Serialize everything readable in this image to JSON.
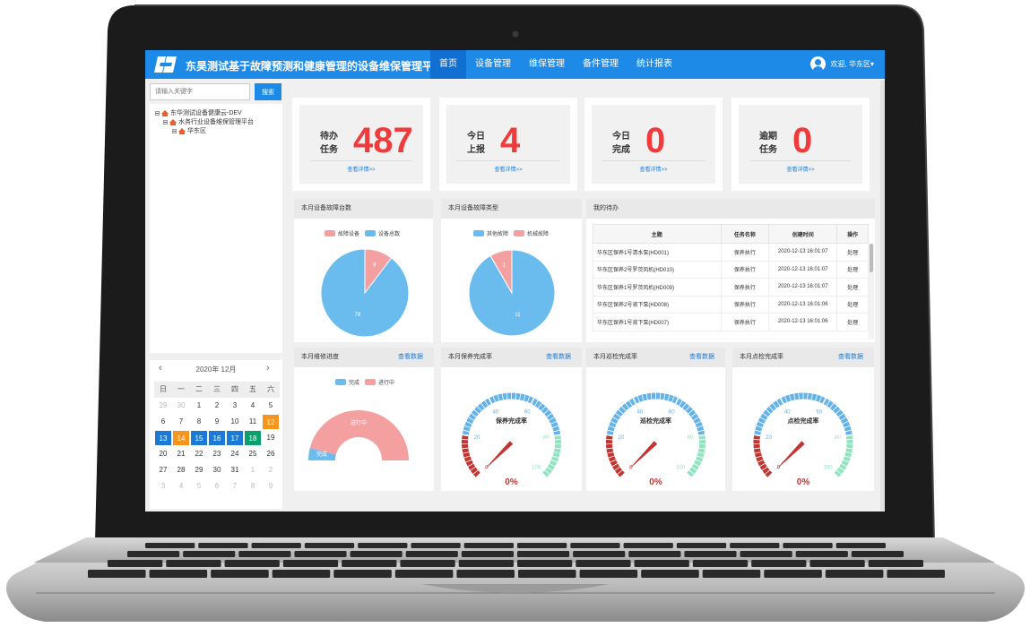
{
  "app": {
    "title": "东昊测试基于故障预测和健康管理的设备维保管理平台"
  },
  "nav": {
    "items": [
      "首页",
      "设备管理",
      "维保管理",
      "备件管理",
      "统计报表"
    ],
    "active": 0
  },
  "user": {
    "greeting": "欢迎, 华东区",
    "caret": "▾"
  },
  "search": {
    "placeholder": "请输入关键字",
    "button": "搜索"
  },
  "tree": {
    "nodes": [
      "东华测试设备健康云-DEV",
      "水务行业设备维保管理平台",
      "华东区"
    ]
  },
  "calendar": {
    "prev": "‹",
    "next": "›",
    "title": "2020年 12月",
    "weekdays": [
      "日",
      "一",
      "二",
      "三",
      "四",
      "五",
      "六"
    ],
    "weeks": [
      [
        "29",
        "30",
        "1",
        "2",
        "3",
        "4",
        "5"
      ],
      [
        "6",
        "7",
        "8",
        "9",
        "10",
        "11",
        "12"
      ],
      [
        "13",
        "14",
        "15",
        "16",
        "17",
        "18",
        "19"
      ],
      [
        "20",
        "21",
        "22",
        "23",
        "24",
        "25",
        "26"
      ],
      [
        "27",
        "28",
        "29",
        "30",
        "31",
        "1",
        "2"
      ],
      [
        "3",
        "4",
        "5",
        "6",
        "7",
        "8",
        "9"
      ]
    ]
  },
  "stats": [
    {
      "label": "待办任务",
      "value": "487",
      "link": "查看详情>>"
    },
    {
      "label": "今日上报",
      "value": "4",
      "link": "查看详情>>"
    },
    {
      "label": "今日完成",
      "value": "0",
      "link": "查看详情>>"
    },
    {
      "label": "逾期任务",
      "value": "0",
      "link": "查看详情>>"
    }
  ],
  "panels": {
    "fault_count": {
      "title": "本月设备故障台数"
    },
    "fault_type": {
      "title": "本月设备故障类型"
    },
    "todo": {
      "title": "我的待办",
      "columns": [
        "主题",
        "任务名称",
        "创建时间",
        "操作"
      ],
      "rows": [
        [
          "华东区保养1号清水泵(HD001)",
          "保养执行",
          "2020-12-13 16:01:07",
          "处理"
        ],
        [
          "华东区保养2号罗茨风机(HD010)",
          "保养执行",
          "2020-12-13 16:01:07",
          "处理"
        ],
        [
          "华东区保养1号罗茨风机(HD009)",
          "保养执行",
          "2020-12-13 16:01:07",
          "处理"
        ],
        [
          "华东区保养2号液下泵(HD008)",
          "保养执行",
          "2020-12-13 16:01:06",
          "处理"
        ],
        [
          "华东区保养1号液下泵(HD007)",
          "保养执行",
          "2020-12-13 16:01:06",
          "处理"
        ]
      ]
    },
    "repair_progress": {
      "title": "本月维修进度",
      "more": "查看数据",
      "inner_label": "进行中",
      "done_label": "完成"
    },
    "maintain_rate": {
      "title": "本月保养完成率",
      "more": "查看数据",
      "gauge_title": "保养完成率",
      "value": "0%"
    },
    "inspect_rate": {
      "title": "本月巡检完成率",
      "more": "查看数据",
      "gauge_title": "巡检完成率",
      "value": "0%"
    },
    "spot_rate": {
      "title": "本月点检完成率",
      "more": "查看数据",
      "gauge_title": "点检完成率",
      "value": "0%"
    }
  },
  "chart_data": [
    {
      "type": "pie",
      "title": "本月设备故障台数",
      "legend": [
        "故障设备",
        "设备总数"
      ],
      "values": [
        9,
        78
      ],
      "colors": [
        "#f4a0a0",
        "#6bbcee"
      ]
    },
    {
      "type": "pie",
      "title": "本月设备故障类型",
      "legend": [
        "其他故障",
        "机械故障"
      ],
      "values": [
        11,
        1
      ],
      "colors": [
        "#6bbcee",
        "#f4a0a0"
      ]
    },
    {
      "type": "pie",
      "title": "本月维修进度",
      "legend": [
        "完成",
        "进行中"
      ],
      "values": [
        0.08,
        0.92
      ],
      "colors": [
        "#6bbcee",
        "#f4a0a0"
      ]
    },
    {
      "type": "gauge",
      "title": "保养完成率",
      "ticks": [
        "0",
        "20",
        "40",
        "60",
        "80",
        "100"
      ],
      "value": 0
    },
    {
      "type": "gauge",
      "title": "巡检完成率",
      "ticks": [
        "0",
        "20",
        "40",
        "60",
        "80",
        "100"
      ],
      "value": 0
    },
    {
      "type": "gauge",
      "title": "点检完成率",
      "ticks": [
        "0",
        "20",
        "40",
        "60",
        "80",
        "100"
      ],
      "value": 0
    }
  ]
}
